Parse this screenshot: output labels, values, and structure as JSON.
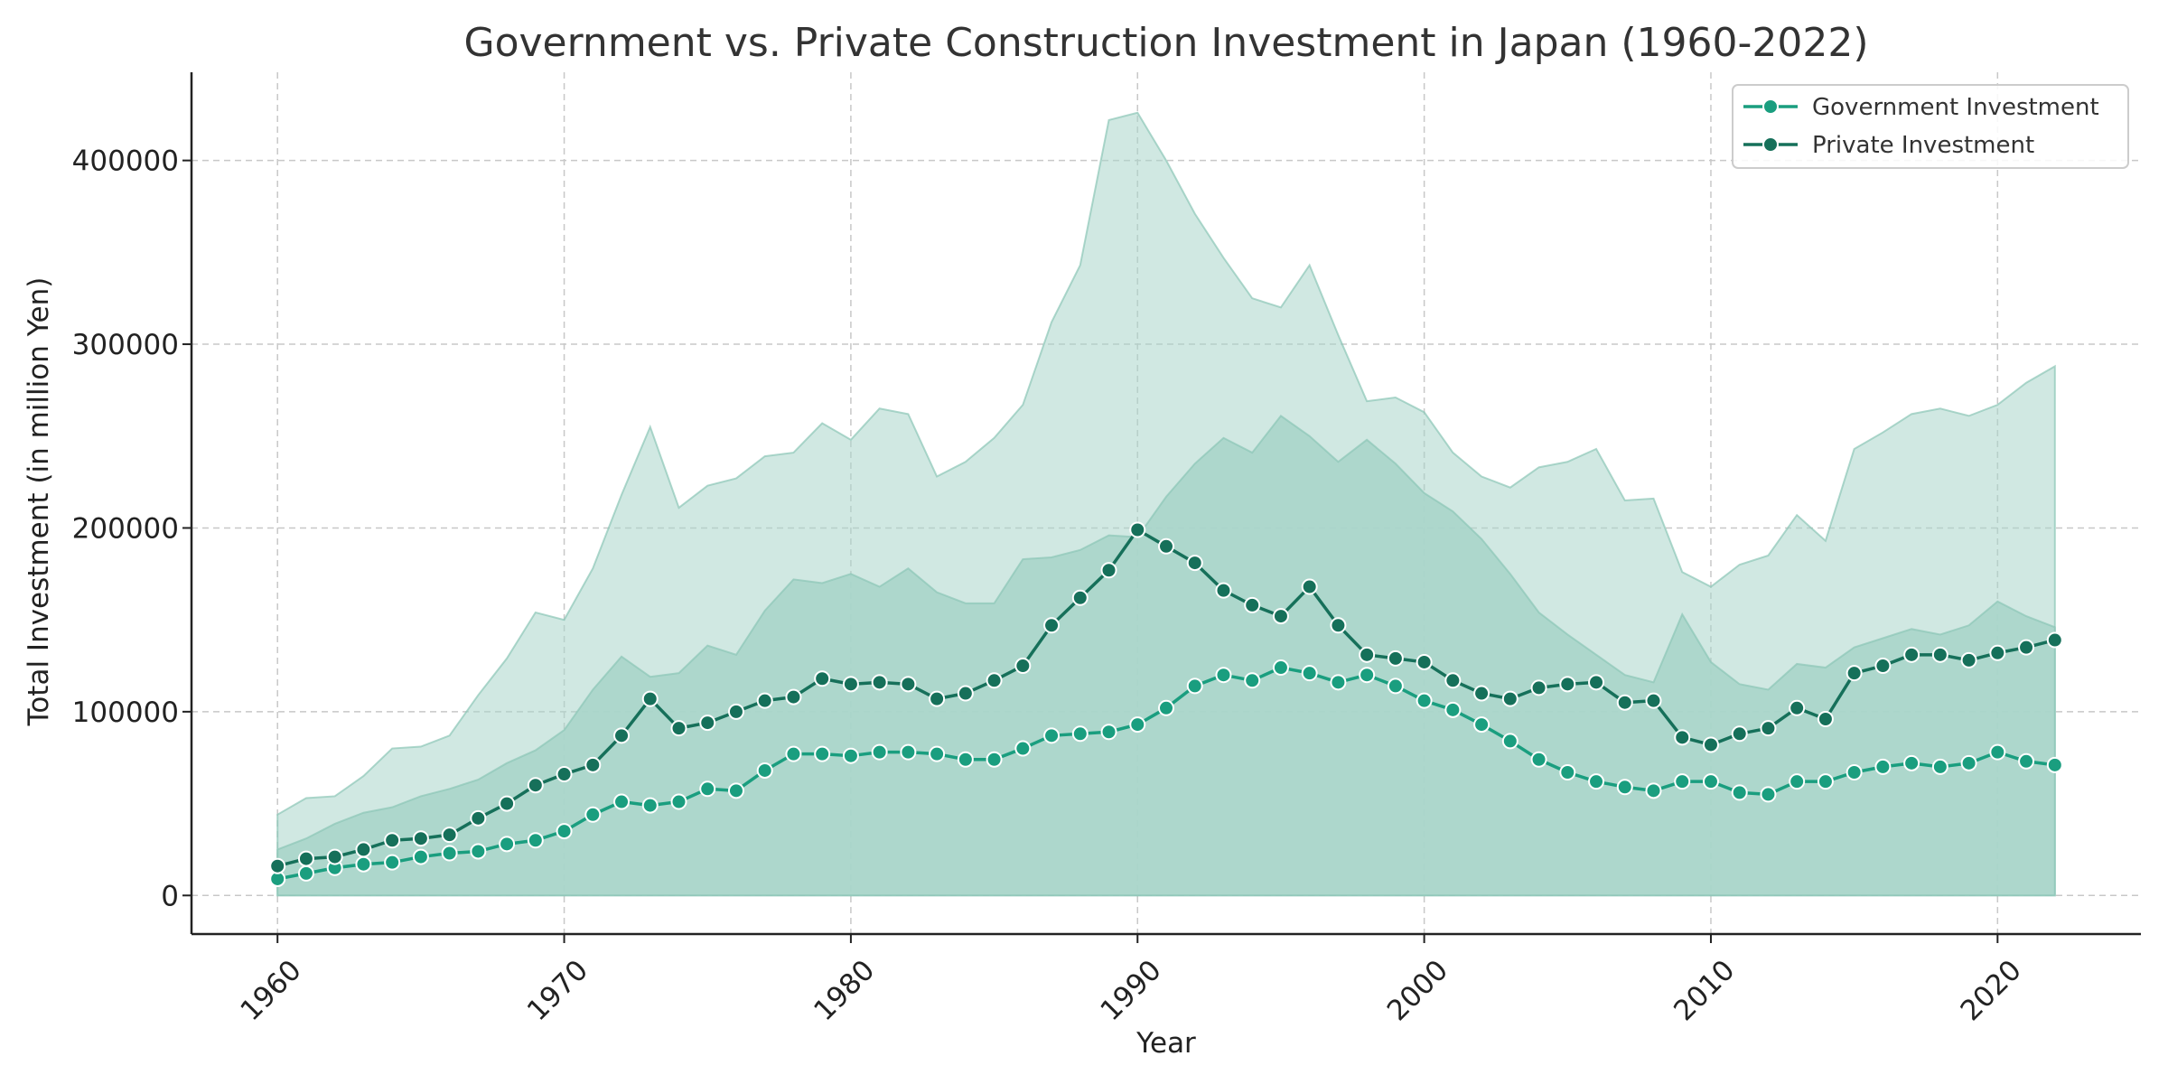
{
  "chart_data": {
    "type": "line",
    "title": "Government vs. Private Construction Investment in Japan (1960-2022)",
    "xlabel": "Year",
    "ylabel": "Total Investment (in million Yen)",
    "xlim": [
      1957,
      2025
    ],
    "ylim": [
      -21000,
      448000
    ],
    "xticks": [
      1960,
      1970,
      1980,
      1990,
      2000,
      2010,
      2020
    ],
    "yticks": [
      0,
      100000,
      200000,
      300000,
      400000
    ],
    "grid": true,
    "legend_position": "top-right",
    "x": [
      1960,
      1961,
      1962,
      1963,
      1964,
      1965,
      1966,
      1967,
      1968,
      1969,
      1970,
      1971,
      1972,
      1973,
      1974,
      1975,
      1976,
      1977,
      1978,
      1979,
      1980,
      1981,
      1982,
      1983,
      1984,
      1985,
      1986,
      1987,
      1988,
      1989,
      1990,
      1991,
      1992,
      1993,
      1994,
      1995,
      1996,
      1997,
      1998,
      1999,
      2000,
      2001,
      2002,
      2003,
      2004,
      2005,
      2006,
      2007,
      2008,
      2009,
      2010,
      2011,
      2012,
      2013,
      2014,
      2015,
      2016,
      2017,
      2018,
      2019,
      2020,
      2021,
      2022
    ],
    "series": [
      {
        "name": "Government Investment",
        "color": "#1a9e7f",
        "marker": "circle",
        "values": [
          9000,
          12000,
          15000,
          17000,
          18000,
          21000,
          23000,
          24000,
          28000,
          30000,
          35000,
          44000,
          51000,
          49000,
          51000,
          58000,
          57000,
          68000,
          77000,
          77000,
          76000,
          78000,
          78000,
          77000,
          74000,
          74000,
          80000,
          87000,
          88000,
          89000,
          93000,
          102000,
          114000,
          120000,
          117000,
          124000,
          121000,
          116000,
          120000,
          114000,
          106000,
          101000,
          93000,
          84000,
          74000,
          67000,
          62000,
          59000,
          57000,
          62000,
          62000,
          56000,
          55000,
          62000,
          62000,
          67000,
          70000,
          72000,
          70000,
          72000,
          78000,
          73000,
          71000
        ]
      },
      {
        "name": "Private Investment",
        "color": "#16705a",
        "marker": "circle",
        "values": [
          16000,
          20000,
          21000,
          25000,
          30000,
          31000,
          33000,
          42000,
          50000,
          60000,
          66000,
          71000,
          87000,
          107000,
          91000,
          94000,
          100000,
          106000,
          108000,
          118000,
          115000,
          116000,
          115000,
          107000,
          110000,
          117000,
          125000,
          147000,
          162000,
          177000,
          199000,
          190000,
          181000,
          166000,
          158000,
          152000,
          168000,
          147000,
          131000,
          129000,
          127000,
          117000,
          110000,
          107000,
          113000,
          115000,
          116000,
          105000,
          106000,
          86000,
          82000,
          88000,
          91000,
          102000,
          96000,
          121000,
          125000,
          131000,
          131000,
          128000,
          132000,
          135000,
          139000
        ]
      }
    ],
    "bands": [
      {
        "color": "#a9d5ca",
        "opacity": 0.55,
        "values": [
          44000,
          53000,
          54000,
          65000,
          80000,
          81000,
          87000,
          109000,
          129000,
          154000,
          150000,
          178000,
          218000,
          255000,
          211000,
          223000,
          227000,
          239000,
          241000,
          257000,
          248000,
          265000,
          262000,
          228000,
          236000,
          249000,
          267000,
          312000,
          343000,
          422000,
          426000,
          400000,
          371000,
          347000,
          325000,
          320000,
          343000,
          305000,
          269000,
          271000,
          263000,
          241000,
          228000,
          222000,
          233000,
          236000,
          243000,
          215000,
          216000,
          176000,
          168000,
          180000,
          185000,
          207000,
          193000,
          243000,
          252000,
          262000,
          265000,
          261000,
          267000,
          279000,
          288000
        ]
      },
      {
        "color": "#a9d5ca",
        "opacity": 0.9,
        "values": [
          25000,
          31000,
          39000,
          45000,
          48000,
          54000,
          58000,
          63000,
          72000,
          79000,
          90000,
          112000,
          130000,
          119000,
          121000,
          136000,
          131000,
          155000,
          172000,
          170000,
          175000,
          168000,
          178000,
          165000,
          159000,
          159000,
          183000,
          184000,
          188000,
          196000,
          195000,
          217000,
          235000,
          249000,
          241000,
          261000,
          250000,
          236000,
          248000,
          235000,
          219000,
          209000,
          194000,
          175000,
          154000,
          142000,
          131000,
          120000,
          116000,
          153000,
          127000,
          115000,
          112000,
          126000,
          124000,
          135000,
          140000,
          145000,
          142000,
          147000,
          160000,
          152000,
          146000
        ]
      }
    ]
  }
}
